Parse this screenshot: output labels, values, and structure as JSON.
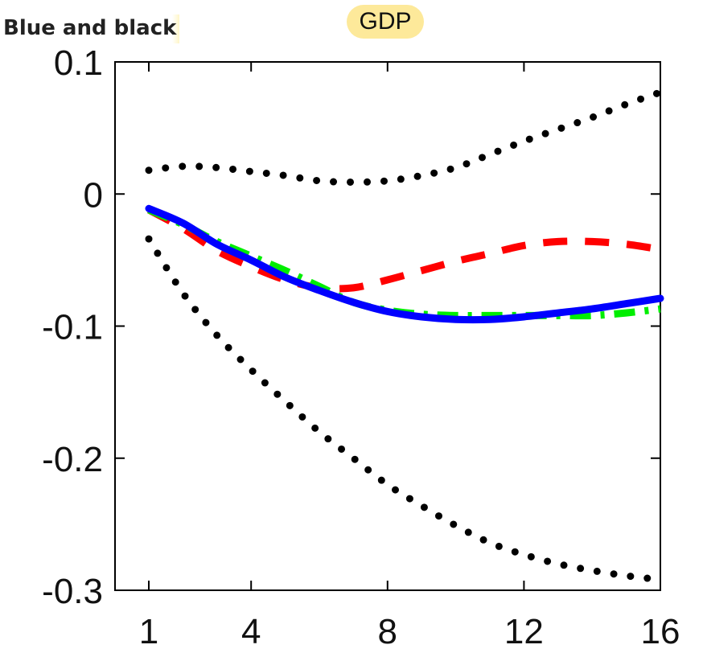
{
  "overlay_label": "Blue and black",
  "chart_data": {
    "type": "line",
    "title": "GDP",
    "xlabel": "",
    "ylabel": "",
    "xlim": [
      1,
      16
    ],
    "ylim": [
      -0.3,
      0.1
    ],
    "x_ticks": [
      1,
      4,
      8,
      12,
      16
    ],
    "y_ticks": [
      0.1,
      0,
      -0.1,
      -0.2,
      -0.3
    ],
    "x_tick_labels": [
      "1",
      "4",
      "8",
      "12",
      "16"
    ],
    "y_tick_labels": [
      "0.1",
      "0",
      "-0.1",
      "-0.2",
      "-0.3"
    ],
    "grid": false,
    "legend": "none",
    "x": [
      1,
      2,
      3,
      4,
      5,
      6,
      7,
      8,
      9,
      10,
      11,
      12,
      13,
      14,
      15,
      16
    ],
    "series": [
      {
        "style": "dotted",
        "color": "#000000",
        "values": [
          0.018,
          0.021,
          0.02,
          0.017,
          0.014,
          0.01,
          0.009,
          0.01,
          0.014,
          0.02,
          0.03,
          0.04,
          0.049,
          0.058,
          0.068,
          0.077
        ]
      },
      {
        "style": "dotted",
        "color": "#000000",
        "values": [
          -0.034,
          -0.075,
          -0.107,
          -0.133,
          -0.157,
          -0.18,
          -0.2,
          -0.22,
          -0.236,
          -0.251,
          -0.264,
          -0.273,
          -0.28,
          -0.285,
          -0.289,
          -0.292
        ]
      },
      {
        "style": "dashed",
        "color": "#ff0000",
        "values": [
          -0.012,
          -0.026,
          -0.043,
          -0.055,
          -0.065,
          -0.071,
          -0.071,
          -0.065,
          -0.058,
          -0.051,
          -0.045,
          -0.039,
          -0.036,
          -0.036,
          -0.038,
          -0.042
        ]
      },
      {
        "style": "dashdot",
        "color": "#00ee00",
        "values": [
          -0.012,
          -0.023,
          -0.036,
          -0.047,
          -0.058,
          -0.07,
          -0.082,
          -0.088,
          -0.091,
          -0.092,
          -0.092,
          -0.092,
          -0.092,
          -0.092,
          -0.09,
          -0.087
        ]
      },
      {
        "style": "solid",
        "color": "#0000ff",
        "values": [
          -0.011,
          -0.022,
          -0.038,
          -0.05,
          -0.063,
          -0.073,
          -0.082,
          -0.089,
          -0.093,
          -0.095,
          -0.095,
          -0.093,
          -0.09,
          -0.087,
          -0.083,
          -0.079
        ]
      }
    ]
  }
}
